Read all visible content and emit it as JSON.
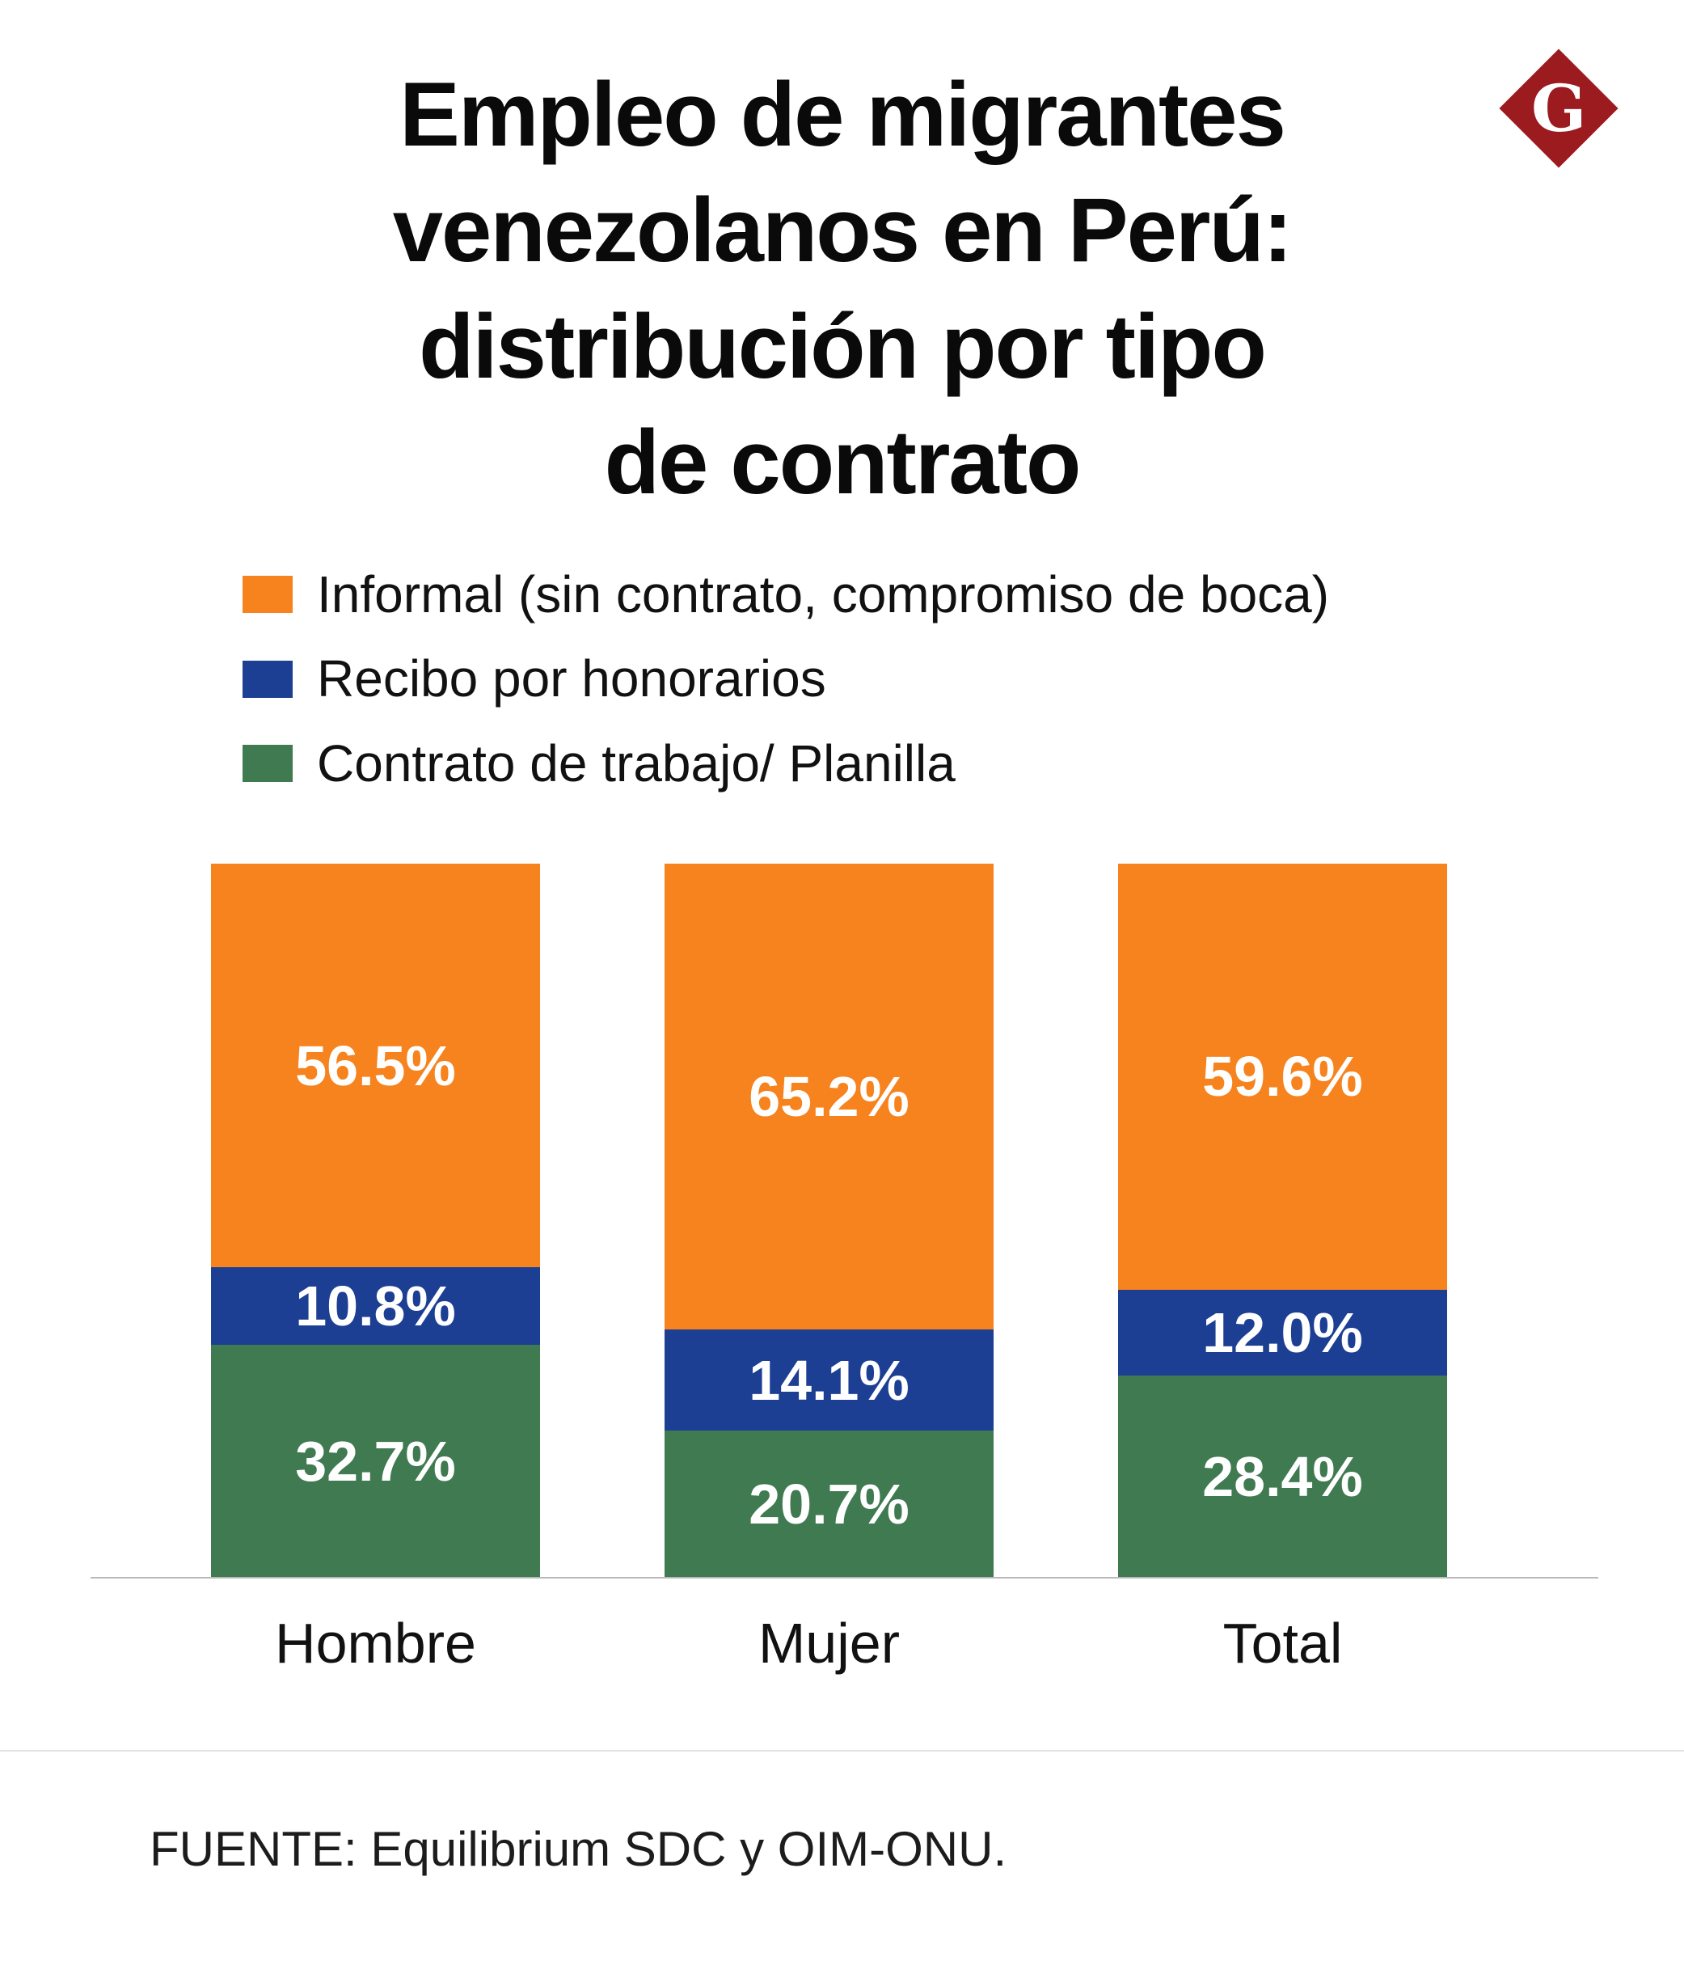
{
  "logo": {
    "letter": "G",
    "color": "#9b1b1e"
  },
  "title": {
    "lines": [
      "Empleo de migrantes",
      "venezolanos en Perú:",
      "distribución por tipo",
      "de contrato"
    ]
  },
  "legend": [
    {
      "label": "Informal (sin contrato, compromiso de boca)",
      "color": "#f6831e"
    },
    {
      "label": "Recibo por honorarios",
      "color": "#1c3f94"
    },
    {
      "label": "Contrato de trabajo/ Planilla",
      "color": "#3f7a50"
    }
  ],
  "chart_data": {
    "type": "bar",
    "stacked": true,
    "title": "Empleo de migrantes venezolanos en Perú: distribución por tipo de contrato",
    "categories": [
      "Hombre",
      "Mujer",
      "Total"
    ],
    "series": [
      {
        "name": "Informal (sin contrato, compromiso de boca)",
        "color": "#f6831e",
        "values": [
          56.5,
          65.2,
          59.6
        ]
      },
      {
        "name": "Recibo por honorarios",
        "color": "#1c3f94",
        "values": [
          10.8,
          14.1,
          12.0
        ]
      },
      {
        "name": "Contrato de trabajo/ Planilla",
        "color": "#3f7a50",
        "values": [
          32.7,
          20.7,
          28.4
        ]
      }
    ],
    "value_labels": [
      [
        "56.5%",
        "10.8%",
        "32.7%"
      ],
      [
        "65.2%",
        "14.1%",
        "20.7%"
      ],
      [
        "59.6%",
        "12.0%",
        "28.4%"
      ]
    ],
    "ylim": [
      0,
      100
    ],
    "legend_position": "top-left",
    "grid": false
  },
  "footer": {
    "source": "FUENTE: Equilibrium SDC y OIM-ONU."
  }
}
